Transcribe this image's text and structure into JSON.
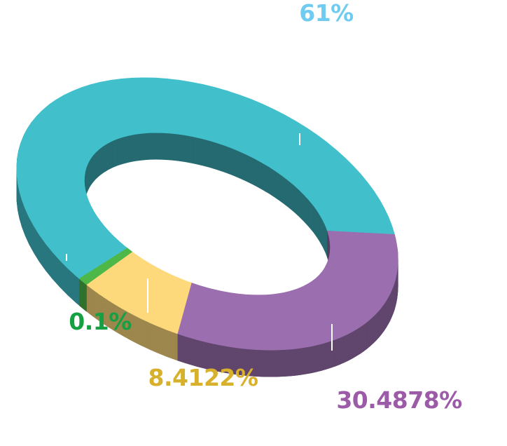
{
  "chart_data": {
    "type": "pie",
    "style": "3d-donut",
    "title": "",
    "legend": "none",
    "slices": [
      {
        "label": "61%",
        "value": 61,
        "color": "#41C0CB"
      },
      {
        "label": "30.4878%",
        "value": 30.4878,
        "color": "#9B6FAF"
      },
      {
        "label": "8.4122%",
        "value": 8.4122,
        "color": "#FDD97C"
      },
      {
        "label": "0.1%",
        "value": 0.1,
        "color": "#4DB848"
      }
    ],
    "label_colors": [
      "#6FCBF0",
      "#9C5BA7",
      "#D8B12C",
      "#14A043"
    ]
  }
}
